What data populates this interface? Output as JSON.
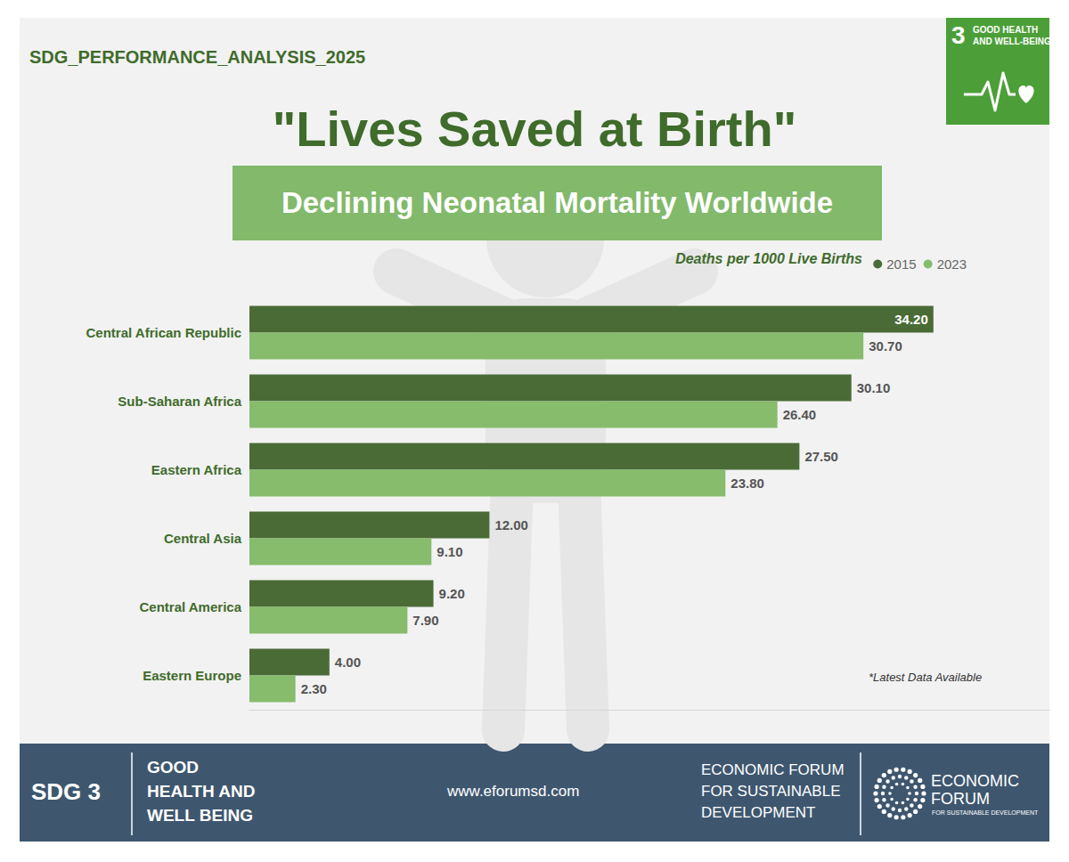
{
  "header": {
    "tag": "SDG_PERFORMANCE_ANALYSIS_2025",
    "badge": {
      "number": "3",
      "lines": [
        "GOOD HEALTH",
        "AND WELL-BEING"
      ]
    }
  },
  "chart_data": {
    "type": "bar",
    "orientation": "horizontal",
    "title": "\"Lives Saved at Birth\"",
    "subtitle": "Declining Neonatal Mortality Worldwide",
    "legend_title": "Deaths per 1000 Live Births",
    "legend": "top-right",
    "categories": [
      "Central African Republic",
      "Sub-Saharan Africa",
      "Eastern Africa",
      "Central Asia",
      "Central America",
      "Eastern Europe"
    ],
    "series": [
      {
        "name": "2015",
        "color": "#4a6b36",
        "values": [
          34.2,
          30.1,
          27.5,
          12.0,
          9.2,
          4.0
        ],
        "value_labels": [
          "34.20",
          "30.10",
          "27.50",
          "12.00",
          "9.20",
          "4.00"
        ]
      },
      {
        "name": "2023",
        "color": "#86bc6c",
        "values": [
          30.7,
          26.4,
          23.8,
          9.1,
          7.9,
          2.3
        ],
        "value_labels": [
          "30.70",
          "26.40",
          "23.80",
          "9.10",
          "7.90",
          "2.30"
        ]
      }
    ],
    "xlim": [
      0,
      40
    ],
    "data_labels": true,
    "tick_labels": "y",
    "grid": false,
    "note": "*Latest Data Available"
  },
  "footer": {
    "goal": "SDG 3",
    "goal_lines": [
      "GOOD",
      "HEALTH AND",
      "WELL BEING"
    ],
    "website": "www.eforumsd.com",
    "org_lines": [
      "ECONOMIC FORUM",
      "FOR SUSTAINABLE",
      "DEVELOPMENT"
    ],
    "logo_lines": [
      "ECONOMIC",
      "FORUM"
    ],
    "logo_tagline": "FOR SUSTAINABLE DEVELOPMENT"
  }
}
